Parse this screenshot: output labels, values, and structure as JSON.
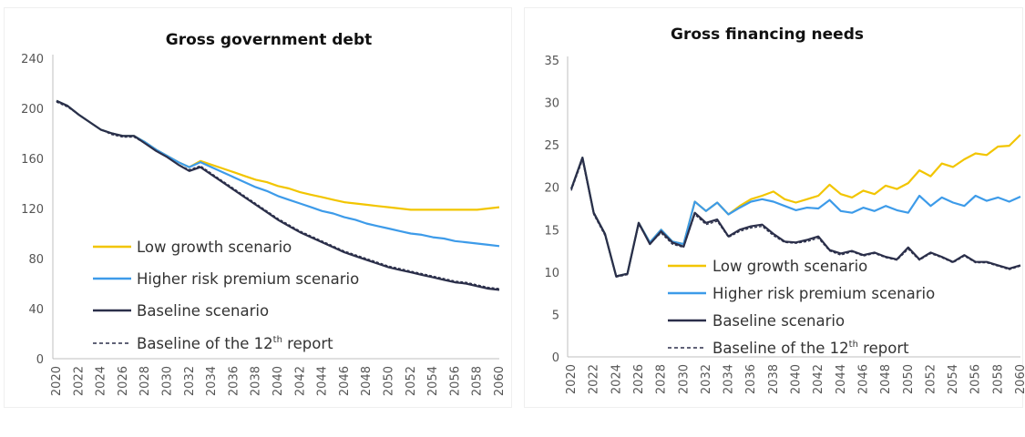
{
  "colors": {
    "low_growth": "#f2c500",
    "higher_risk": "#3d9be9",
    "baseline": "#2b2f4a",
    "baseline_12th": "#2b2f4a"
  },
  "chart_data": [
    {
      "type": "line",
      "title": "Gross government debt",
      "xlabel": "",
      "ylabel": "",
      "ylim": [
        0,
        240
      ],
      "yticks": [
        0,
        40,
        80,
        120,
        160,
        200,
        240
      ],
      "x_tick_labels": [
        "2020",
        "2022",
        "2024",
        "2026",
        "2028",
        "2030",
        "2032",
        "2034",
        "2036",
        "2038",
        "2040",
        "2042",
        "2044",
        "2046",
        "2048",
        "2050",
        "2052",
        "2054",
        "2056",
        "2058",
        "2060"
      ],
      "x": [
        2020,
        2021,
        2022,
        2023,
        2024,
        2025,
        2026,
        2027,
        2028,
        2029,
        2030,
        2031,
        2032,
        2033,
        2034,
        2035,
        2036,
        2037,
        2038,
        2039,
        2040,
        2041,
        2042,
        2043,
        2044,
        2045,
        2046,
        2047,
        2048,
        2049,
        2050,
        2051,
        2052,
        2053,
        2054,
        2055,
        2056,
        2057,
        2058,
        2059,
        2060
      ],
      "legend": {
        "low_growth": "Low growth scenario",
        "higher_risk": "Higher risk premium scenario",
        "baseline": "Baseline scenario",
        "baseline_12th_pre": "Baseline of the 12",
        "baseline_12th_sup": "th",
        "baseline_12th_post": " report"
      },
      "series": [
        {
          "key": "low_growth",
          "name": "Low growth scenario",
          "values": [
            206,
            202,
            195,
            189,
            183,
            180,
            178,
            178,
            173,
            167,
            162,
            157,
            153,
            158,
            155,
            152,
            149,
            146,
            143,
            141,
            138,
            136,
            133,
            131,
            129,
            127,
            125,
            124,
            123,
            122,
            121,
            120,
            119,
            119,
            119,
            119,
            119,
            119,
            119,
            120,
            121
          ]
        },
        {
          "key": "higher_risk",
          "name": "Higher risk premium scenario",
          "values": [
            206,
            202,
            195,
            189,
            183,
            180,
            178,
            178,
            173,
            167,
            162,
            157,
            153,
            157,
            153,
            149,
            145,
            141,
            137,
            134,
            130,
            127,
            124,
            121,
            118,
            116,
            113,
            111,
            108,
            106,
            104,
            102,
            100,
            99,
            97,
            96,
            94,
            93,
            92,
            91,
            90
          ]
        },
        {
          "key": "baseline",
          "name": "Baseline scenario",
          "values": [
            206,
            202,
            195,
            189,
            183,
            180,
            178,
            178,
            172,
            166,
            161,
            155,
            150,
            153,
            147,
            141,
            135,
            129,
            123,
            117,
            111,
            106,
            101,
            97,
            93,
            89,
            85,
            82,
            79,
            76,
            73,
            71,
            69,
            67,
            65,
            63,
            61,
            60,
            58,
            56,
            55
          ]
        },
        {
          "key": "baseline_12th",
          "name": "Baseline of the 12th report",
          "dashed": true,
          "values": [
            205,
            201,
            195,
            189,
            183,
            179,
            177,
            177,
            172,
            166,
            161,
            155,
            151,
            154,
            148,
            142,
            136,
            130,
            124,
            118,
            112,
            107,
            102,
            98,
            94,
            90,
            86,
            83,
            80,
            77,
            74,
            72,
            70,
            68,
            66,
            64,
            62,
            61,
            59,
            57,
            56
          ]
        }
      ]
    },
    {
      "type": "line",
      "title": "Gross financing needs",
      "xlabel": "",
      "ylabel": "",
      "ylim": [
        0,
        35
      ],
      "yticks": [
        0,
        5,
        10,
        15,
        20,
        25,
        30,
        35
      ],
      "x_tick_labels": [
        "2020",
        "2022",
        "2024",
        "2026",
        "2028",
        "2030",
        "2032",
        "2034",
        "2036",
        "2038",
        "2040",
        "2042",
        "2044",
        "2046",
        "2048",
        "2050",
        "2052",
        "2054",
        "2056",
        "2058",
        "2060"
      ],
      "x": [
        2020,
        2021,
        2022,
        2023,
        2024,
        2025,
        2026,
        2027,
        2028,
        2029,
        2030,
        2031,
        2032,
        2033,
        2034,
        2035,
        2036,
        2037,
        2038,
        2039,
        2040,
        2041,
        2042,
        2043,
        2044,
        2045,
        2046,
        2047,
        2048,
        2049,
        2050,
        2051,
        2052,
        2053,
        2054,
        2055,
        2056,
        2057,
        2058,
        2059,
        2060
      ],
      "legend": {
        "low_growth": "Low growth scenario",
        "higher_risk": "Higher risk premium scenario",
        "baseline": "Baseline scenario",
        "baseline_12th_pre": "Baseline of the 12",
        "baseline_12th_sup": "th",
        "baseline_12th_post": " report"
      },
      "series": [
        {
          "key": "low_growth",
          "name": "Low growth scenario",
          "values": [
            19.8,
            23.5,
            17.0,
            14.5,
            9.5,
            9.8,
            15.8,
            13.5,
            15.0,
            13.6,
            13.3,
            18.3,
            17.2,
            18.2,
            16.8,
            17.8,
            18.6,
            19.0,
            19.5,
            18.6,
            18.2,
            18.6,
            19.0,
            20.3,
            19.2,
            18.8,
            19.6,
            19.2,
            20.2,
            19.8,
            20.5,
            22.0,
            21.3,
            22.8,
            22.4,
            23.3,
            24.0,
            23.8,
            24.8,
            24.9,
            26.2
          ]
        },
        {
          "key": "higher_risk",
          "name": "Higher risk premium scenario",
          "values": [
            19.8,
            23.5,
            17.0,
            14.5,
            9.5,
            9.8,
            15.8,
            13.5,
            15.0,
            13.6,
            13.3,
            18.3,
            17.2,
            18.2,
            16.8,
            17.6,
            18.3,
            18.6,
            18.3,
            17.8,
            17.3,
            17.6,
            17.5,
            18.5,
            17.2,
            17.0,
            17.6,
            17.2,
            17.8,
            17.3,
            17.0,
            19.0,
            17.8,
            18.8,
            18.2,
            17.8,
            19.0,
            18.4,
            18.8,
            18.3,
            18.9
          ]
        },
        {
          "key": "baseline",
          "name": "Baseline scenario",
          "values": [
            19.8,
            23.5,
            17.0,
            14.5,
            9.5,
            9.8,
            15.8,
            13.3,
            14.8,
            13.5,
            13.0,
            17.0,
            15.8,
            16.2,
            14.2,
            15.0,
            15.4,
            15.6,
            14.5,
            13.6,
            13.5,
            13.8,
            14.2,
            12.6,
            12.2,
            12.5,
            12.0,
            12.3,
            11.8,
            11.5,
            12.9,
            11.5,
            12.3,
            11.8,
            11.2,
            12.0,
            11.2,
            11.2,
            10.8,
            10.4,
            10.8
          ]
        },
        {
          "key": "baseline_12th",
          "name": "Baseline of the 12th report",
          "dashed": true,
          "values": [
            19.6,
            23.2,
            16.8,
            14.3,
            9.4,
            9.7,
            15.6,
            13.4,
            14.6,
            13.3,
            12.9,
            16.8,
            15.6,
            16.0,
            14.1,
            14.8,
            15.2,
            15.4,
            14.3,
            13.5,
            13.4,
            13.6,
            14.0,
            12.5,
            12.0,
            12.4,
            11.9,
            12.2,
            11.7,
            11.4,
            12.7,
            11.4,
            12.2,
            11.7,
            11.1,
            11.9,
            11.1,
            11.1,
            10.7,
            10.3,
            10.7
          ]
        }
      ]
    }
  ]
}
